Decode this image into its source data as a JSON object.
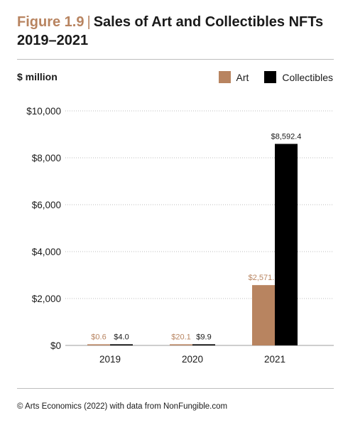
{
  "header": {
    "figure_label": "Figure 1.9",
    "title_line1": "Sales of Art and Collectibles NFTs",
    "title_line2": "2019–2021"
  },
  "colors": {
    "art": "#b88460",
    "collectibles": "#000000",
    "grid": "#bdbdbd"
  },
  "chart_data": {
    "type": "bar",
    "title": "Sales of Art and Collectibles NFTs 2019–2021",
    "ylabel": "$ million",
    "categories": [
      "2019",
      "2020",
      "2021"
    ],
    "series": [
      {
        "name": "Art",
        "values": [
          0.6,
          20.1,
          2571.7
        ],
        "labels": [
          "$0.6",
          "$20.1",
          "$2,571.7"
        ]
      },
      {
        "name": "Collectibles",
        "values": [
          4.0,
          9.9,
          8592.4
        ],
        "labels": [
          "$4.0",
          "$9.9",
          "$8,592.4"
        ]
      }
    ],
    "ylim": [
      0,
      10000
    ],
    "yticks": [
      0,
      2000,
      4000,
      6000,
      8000,
      10000
    ],
    "ytick_labels": [
      "$0",
      "$2,000",
      "$4,000",
      "$6,000",
      "$8,000",
      "$10,000"
    ],
    "grid": true,
    "legend_position": "top-right"
  },
  "source": "© Arts Economics (2022) with data from NonFungible.com"
}
